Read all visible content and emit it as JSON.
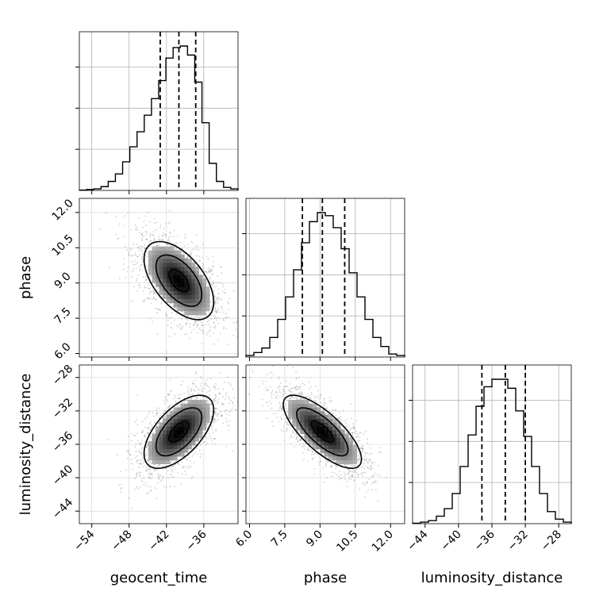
{
  "chart_data": {
    "type": "corner",
    "parameters": [
      "geocent_time",
      "phase",
      "luminosity_distance"
    ],
    "axis_labels": {
      "x": [
        "geocent_time",
        "phase",
        "luminosity_distance"
      ],
      "y": [
        "phase",
        "luminosity_distance"
      ]
    },
    "ranges": [
      [
        -56.0,
        -30.5
      ],
      [
        5.85,
        12.6
      ],
      [
        -45.5,
        -26.5
      ]
    ],
    "ticks": [
      [
        -54,
        -48,
        -42,
        -36
      ],
      [
        6.0,
        7.5,
        9.0,
        10.5,
        12.0
      ],
      [
        -44,
        -40,
        -36,
        -32,
        -28
      ]
    ],
    "tick_labels": [
      [
        "−54",
        "−48",
        "−42",
        "−36"
      ],
      [
        "6.0",
        "7.5",
        "9.0",
        "10.5",
        "12.0"
      ],
      [
        "−44",
        "−40",
        "−36",
        "−32",
        "−28"
      ]
    ],
    "quantiles": [
      [
        -43.0,
        -40.0,
        -37.3
      ],
      [
        8.25,
        9.1,
        10.05
      ],
      [
        -37.2,
        -34.4,
        -32.0
      ]
    ],
    "histograms": [
      {
        "parameter": "geocent_time",
        "counts": [
          0.2,
          0.6,
          1,
          2.5,
          6,
          11,
          19,
          29,
          39,
          50,
          61,
          73,
          88,
          95,
          96,
          90,
          72,
          45,
          18,
          6,
          2,
          1
        ]
      },
      {
        "parameter": "phase",
        "counts": [
          1,
          3,
          6,
          13,
          25,
          40,
          58,
          76,
          90,
          96,
          94,
          86,
          72,
          56,
          40,
          25,
          13,
          7,
          2,
          1
        ]
      },
      {
        "parameter": "luminosity_distance",
        "counts": [
          0.3,
          1,
          2,
          5,
          10,
          20,
          38,
          59,
          78,
          91,
          96,
          96,
          90,
          75,
          58,
          38,
          20,
          8,
          3,
          1
        ]
      }
    ],
    "correlations": {
      "phase_vs_geocent_time": -0.55,
      "luminosity_distance_vs_geocent_time": 0.6,
      "luminosity_distance_vs_phase": -0.75
    },
    "means": [
      -40.0,
      9.1,
      -34.5
    ],
    "stds": [
      3.2,
      0.95,
      2.5
    ],
    "grid": true
  }
}
